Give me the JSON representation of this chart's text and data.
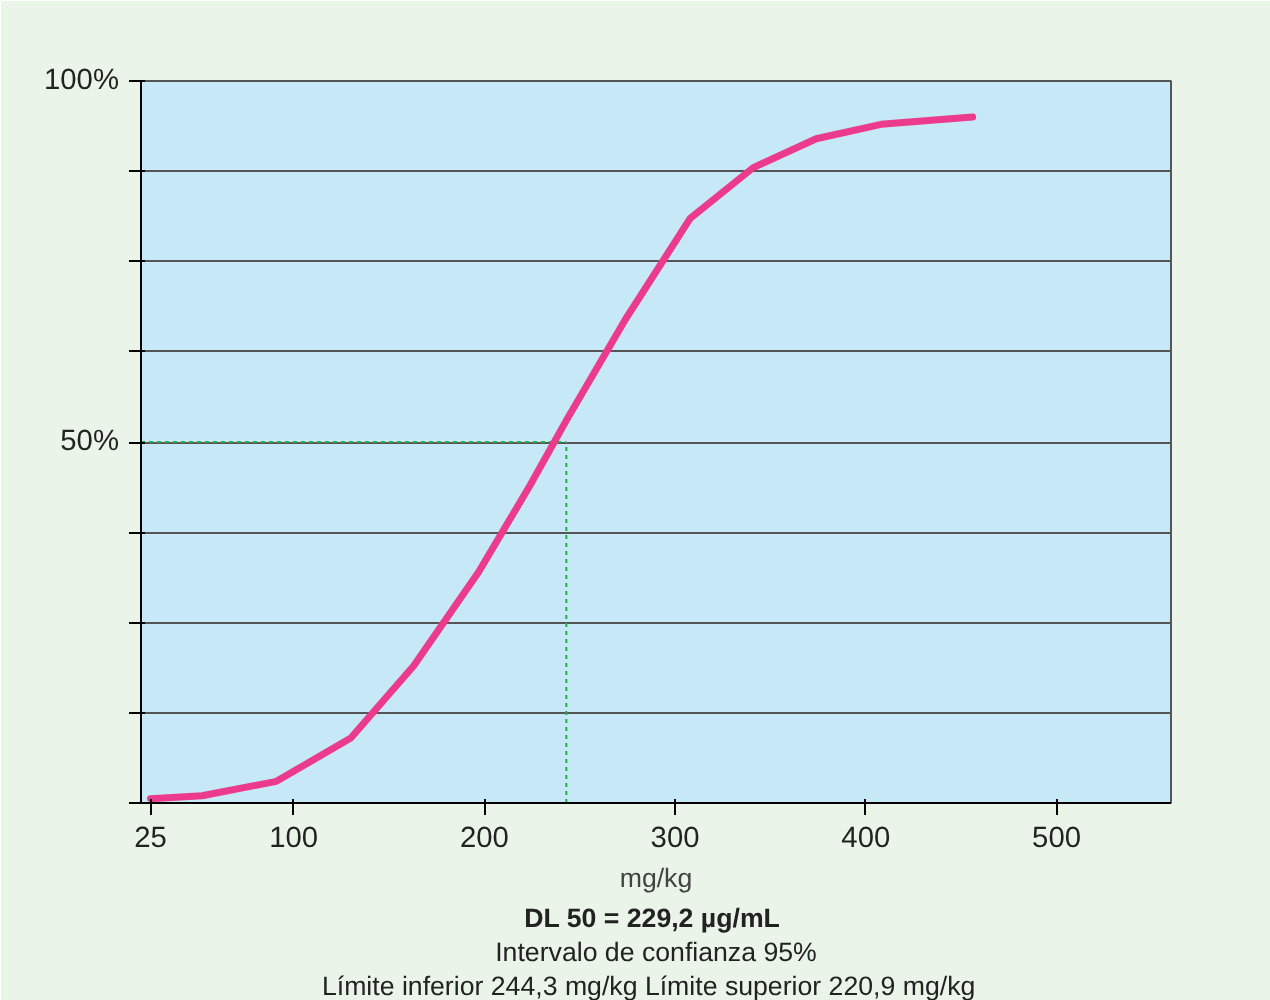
{
  "chart_data": {
    "type": "line",
    "x": [
      25,
      52,
      91,
      130,
      163,
      197,
      224,
      243,
      274,
      308,
      341,
      374,
      408,
      456
    ],
    "series": [
      {
        "color": "#ec3a8c",
        "values": [
          0.6,
          1,
          3,
          9,
          19,
          32,
          44,
          53,
          67,
          81,
          88,
          92,
          94,
          95
        ]
      }
    ],
    "xlim": [
      20,
      560
    ],
    "xticks": [
      25,
      100,
      200,
      300,
      400,
      500
    ],
    "ylim": [
      0,
      100
    ],
    "yticks": [
      {
        "value": 0,
        "label": null
      },
      {
        "value": 12.5,
        "label": null
      },
      {
        "value": 25,
        "label": null
      },
      {
        "value": 37.5,
        "label": null
      },
      {
        "value": 50,
        "label": "50%"
      },
      {
        "value": 62.5,
        "label": null
      },
      {
        "value": 75,
        "label": null
      },
      {
        "value": 87.5,
        "label": null
      },
      {
        "value": 100,
        "label": "100%"
      }
    ],
    "grid": "y",
    "xlabel": "mg/kg",
    "ref_lines": [
      {
        "axis": "x",
        "value": 243,
        "color": "#22b04a",
        "line_style": "dotted"
      },
      {
        "axis": "y",
        "value": 50,
        "color": "#22b04a",
        "line_style": "dotted"
      }
    ],
    "annotations": [
      "DL 50 =  229,2 µg/mL",
      "Intervalo de confianza 95%",
      "Límite inferior 244,3 mg/kg   Límite superior 220,9 mg/kg"
    ]
  }
}
